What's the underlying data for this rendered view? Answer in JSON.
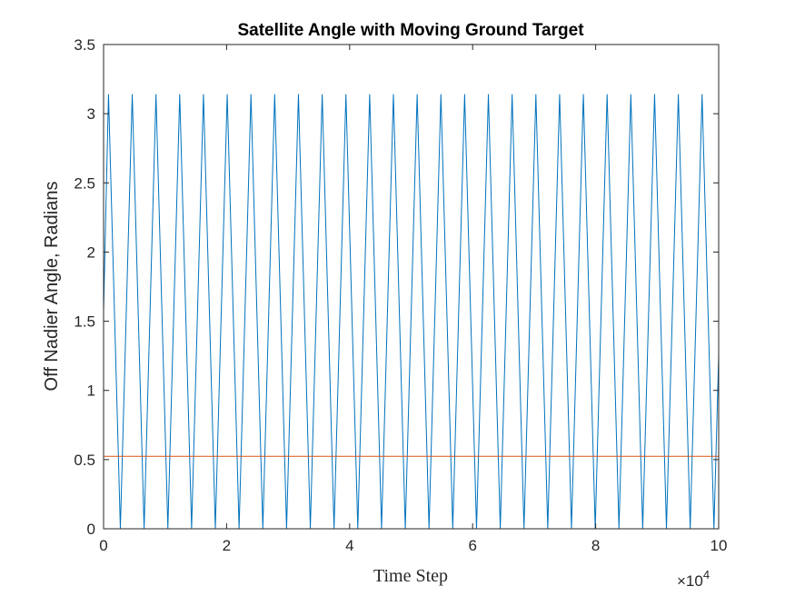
{
  "chart_data": {
    "type": "line",
    "title": "Satellite Angle with Moving Ground Target",
    "xlabel": "Time Step",
    "ylabel": "Off Nadier Angle, Radians",
    "x_multiplier_label": "×10",
    "x_multiplier_exponent": "4",
    "xlim": [
      0,
      100000
    ],
    "ylim": [
      0,
      3.5
    ],
    "xticks": [
      0,
      20000,
      40000,
      60000,
      80000,
      100000
    ],
    "xtick_labels": [
      "0",
      "2",
      "4",
      "6",
      "8",
      "10"
    ],
    "yticks": [
      0,
      0.5,
      1,
      1.5,
      2,
      2.5,
      3,
      3.5
    ],
    "ytick_labels": [
      "0",
      "0.5",
      "1",
      "1.5",
      "2",
      "2.5",
      "3",
      "3.5"
    ],
    "grid": false,
    "series": [
      {
        "color": "#0072BD",
        "shape": "triangle-wave",
        "x_start": 0,
        "y_start": 1.5708,
        "first_peak_x": 800,
        "period": 3860,
        "min": 0,
        "max": 3.1416
      },
      {
        "color": "#D95319",
        "shape": "constant",
        "y": 0.5236
      }
    ]
  }
}
